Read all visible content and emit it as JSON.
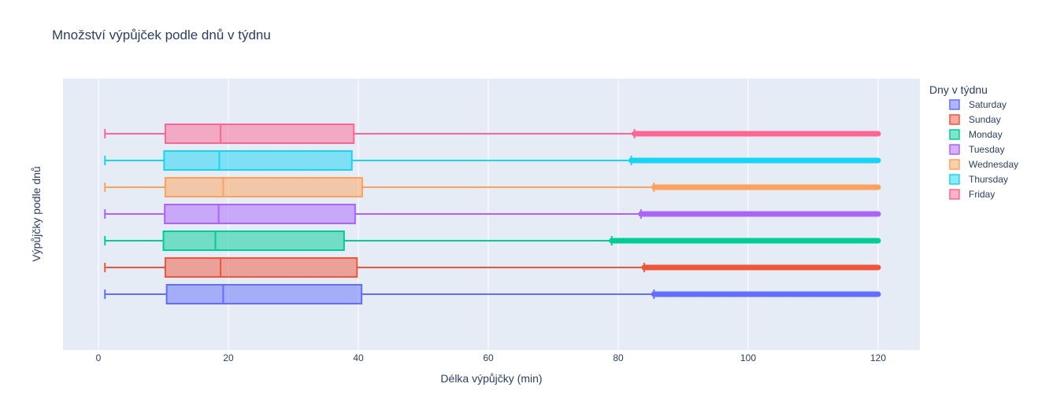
{
  "chart_data": {
    "type": "box",
    "orientation": "horizontal",
    "title": "Množství výpůjček podle dnů v týdnu",
    "xlabel": "Délka výpůjčky (min)",
    "ylabel": "Výpůjčky podle dnů",
    "xlim": [
      -5.5,
      126.5
    ],
    "xticks": [
      0,
      20,
      40,
      60,
      80,
      100,
      120
    ],
    "grid": true,
    "legend": {
      "title": "Dny v týdnu",
      "placement": "right"
    },
    "series": [
      {
        "name": "Saturday",
        "color": "#636efa",
        "min": 1,
        "q1": 10.5,
        "median": 19.2,
        "q3": 40.5,
        "upper_fence": 85.5,
        "outliers_max": 120
      },
      {
        "name": "Sunday",
        "color": "#ef553b",
        "min": 1,
        "q1": 10.3,
        "median": 18.8,
        "q3": 39.8,
        "upper_fence": 84.0,
        "outliers_max": 120
      },
      {
        "name": "Monday",
        "color": "#00cc96",
        "min": 1,
        "q1": 10.0,
        "median": 18.0,
        "q3": 37.8,
        "upper_fence": 79.0,
        "outliers_max": 120
      },
      {
        "name": "Tuesday",
        "color": "#ab63fa",
        "min": 1,
        "q1": 10.2,
        "median": 18.5,
        "q3": 39.5,
        "upper_fence": 83.5,
        "outliers_max": 120
      },
      {
        "name": "Wednesday",
        "color": "#ffa15a",
        "min": 1,
        "q1": 10.3,
        "median": 19.2,
        "q3": 40.6,
        "upper_fence": 85.5,
        "outliers_max": 120
      },
      {
        "name": "Thursday",
        "color": "#19d3f3",
        "min": 1,
        "q1": 10.1,
        "median": 18.6,
        "q3": 39.0,
        "upper_fence": 82.0,
        "outliers_max": 120
      },
      {
        "name": "Friday",
        "color": "#ff6692",
        "min": 1,
        "q1": 10.3,
        "median": 18.8,
        "q3": 39.3,
        "upper_fence": 82.5,
        "outliers_max": 120
      }
    ]
  }
}
